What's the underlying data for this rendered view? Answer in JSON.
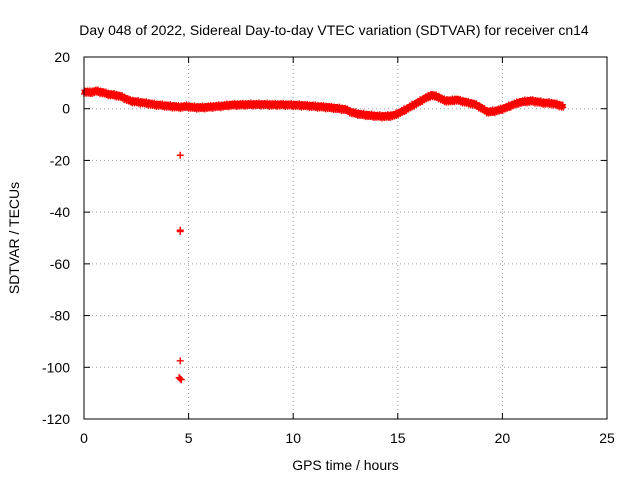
{
  "chart_data": {
    "type": "scatter",
    "title": "Day 048 of 2022, Sidereal Day-to-day VTEC variation (SDTVAR) for receiver cn14",
    "xlabel": "GPS time / hours",
    "ylabel": "SDTVAR / TECUs",
    "xlim": [
      0,
      25
    ],
    "ylim": [
      -120,
      20
    ],
    "xticks": [
      0,
      5,
      10,
      15,
      20,
      25
    ],
    "yticks": [
      -120,
      -100,
      -80,
      -60,
      -40,
      -20,
      0,
      20
    ],
    "xtick_labels": [
      "0",
      "5",
      "10",
      "15",
      "20",
      "25"
    ],
    "ytick_labels": [
      "-120",
      "-100",
      "-80",
      "-60",
      "-40",
      "-20",
      "0",
      "20"
    ],
    "grid": true,
    "marker": "+",
    "color": "#ff0000",
    "series": [
      {
        "name": "SDTVAR",
        "trend": [
          [
            0.0,
            6.5
          ],
          [
            0.3,
            6.3
          ],
          [
            0.6,
            6.8
          ],
          [
            0.9,
            6.2
          ],
          [
            1.2,
            5.5
          ],
          [
            1.5,
            5.2
          ],
          [
            1.8,
            4.6
          ],
          [
            2.0,
            3.8
          ],
          [
            2.2,
            3.0
          ],
          [
            2.5,
            2.6
          ],
          [
            2.8,
            2.3
          ],
          [
            3.1,
            1.9
          ],
          [
            3.4,
            1.5
          ],
          [
            3.7,
            1.3
          ],
          [
            4.0,
            1.0
          ],
          [
            4.3,
            0.8
          ],
          [
            4.6,
            0.6
          ],
          [
            4.9,
            0.9
          ],
          [
            5.2,
            0.5
          ],
          [
            5.5,
            0.4
          ],
          [
            5.8,
            0.5
          ],
          [
            6.1,
            0.7
          ],
          [
            6.4,
            0.9
          ],
          [
            6.7,
            1.1
          ],
          [
            7.0,
            1.4
          ],
          [
            7.5,
            1.5
          ],
          [
            8.0,
            1.6
          ],
          [
            8.5,
            1.6
          ],
          [
            9.0,
            1.5
          ],
          [
            9.5,
            1.5
          ],
          [
            10.0,
            1.4
          ],
          [
            10.5,
            1.2
          ],
          [
            11.0,
            0.9
          ],
          [
            11.5,
            0.6
          ],
          [
            12.0,
            0.2
          ],
          [
            12.5,
            -0.3
          ],
          [
            12.8,
            -1.5
          ],
          [
            13.2,
            -2.2
          ],
          [
            13.6,
            -2.6
          ],
          [
            14.0,
            -2.9
          ],
          [
            14.4,
            -3.0
          ],
          [
            14.8,
            -2.6
          ],
          [
            15.1,
            -1.5
          ],
          [
            15.4,
            -0.2
          ],
          [
            15.7,
            1.2
          ],
          [
            16.0,
            2.6
          ],
          [
            16.3,
            4.0
          ],
          [
            16.6,
            5.2
          ],
          [
            16.9,
            4.6
          ],
          [
            17.2,
            3.2
          ],
          [
            17.5,
            3.0
          ],
          [
            17.8,
            3.4
          ],
          [
            18.1,
            2.8
          ],
          [
            18.4,
            2.2
          ],
          [
            18.7,
            1.6
          ],
          [
            19.0,
            0.2
          ],
          [
            19.3,
            -1.3
          ],
          [
            19.6,
            -1.0
          ],
          [
            19.9,
            -0.4
          ],
          [
            20.2,
            0.5
          ],
          [
            20.5,
            1.5
          ],
          [
            20.8,
            2.4
          ],
          [
            21.1,
            2.8
          ],
          [
            21.4,
            3.0
          ],
          [
            21.7,
            2.6
          ],
          [
            22.0,
            2.2
          ],
          [
            22.3,
            2.1
          ],
          [
            22.6,
            1.6
          ],
          [
            22.9,
            0.9
          ]
        ],
        "outliers": [
          [
            4.6,
            -18.0
          ],
          [
            4.6,
            -47.0
          ],
          [
            4.6,
            -47.5
          ],
          [
            4.6,
            -97.5
          ],
          [
            4.55,
            -104.0
          ],
          [
            4.6,
            -104.5
          ],
          [
            4.65,
            -104.8
          ]
        ]
      }
    ]
  }
}
